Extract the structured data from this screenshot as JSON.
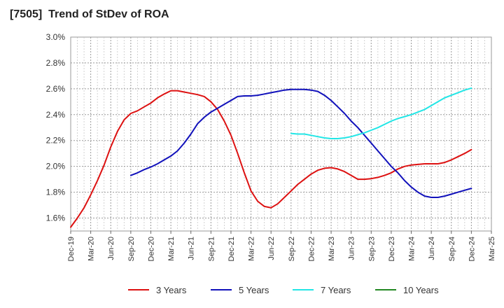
{
  "title": "[7505]  Trend of StDev of ROA",
  "chart_data": {
    "type": "line",
    "title": "[7505]  Trend of StDev of ROA",
    "xlabel": "",
    "ylabel": "",
    "ylim": [
      1.5,
      3.0
    ],
    "y_ticks": [
      "3.0%",
      "2.8%",
      "2.6%",
      "2.4%",
      "2.2%",
      "2.0%",
      "1.8%",
      "1.6%"
    ],
    "y_tick_values": [
      3.0,
      2.8,
      2.6,
      2.4,
      2.2,
      2.0,
      1.8,
      1.6
    ],
    "x_ticks": [
      "Dec-19",
      "Mar-20",
      "Jun-20",
      "Sep-20",
      "Dec-20",
      "Mar-21",
      "Jun-21",
      "Sep-21",
      "Dec-21",
      "Mar-22",
      "Jun-22",
      "Sep-22",
      "Dec-22",
      "Mar-23",
      "Jun-23",
      "Sep-23",
      "Dec-23",
      "Mar-24",
      "Jun-24",
      "Sep-24",
      "Dec-24",
      "Mar-25"
    ],
    "grid": true,
    "legend_position": "bottom",
    "series": [
      {
        "name": "3 Years",
        "color": "#dd1111",
        "points": [
          [
            "Dec-19",
            1.53
          ],
          [
            "Jan-20",
            1.6
          ],
          [
            "Feb-20",
            1.68
          ],
          [
            "Mar-20",
            1.78
          ],
          [
            "Apr-20",
            1.89
          ],
          [
            "May-20",
            2.01
          ],
          [
            "Jun-20",
            2.15
          ],
          [
            "Jul-20",
            2.27
          ],
          [
            "Aug-20",
            2.36
          ],
          [
            "Sep-20",
            2.41
          ],
          [
            "Oct-20",
            2.43
          ],
          [
            "Nov-20",
            2.46
          ],
          [
            "Dec-20",
            2.49
          ],
          [
            "Jan-21",
            2.53
          ],
          [
            "Feb-21",
            2.56
          ],
          [
            "Mar-21",
            2.585
          ],
          [
            "Apr-21",
            2.585
          ],
          [
            "May-21",
            2.575
          ],
          [
            "Jun-21",
            2.565
          ],
          [
            "Jul-21",
            2.555
          ],
          [
            "Aug-21",
            2.54
          ],
          [
            "Sep-21",
            2.5
          ],
          [
            "Oct-21",
            2.44
          ],
          [
            "Nov-21",
            2.35
          ],
          [
            "Dec-21",
            2.24
          ],
          [
            "Jan-22",
            2.1
          ],
          [
            "Feb-22",
            1.95
          ],
          [
            "Mar-22",
            1.81
          ],
          [
            "Apr-22",
            1.73
          ],
          [
            "May-22",
            1.69
          ],
          [
            "Jun-22",
            1.68
          ],
          [
            "Jul-22",
            1.71
          ],
          [
            "Aug-22",
            1.76
          ],
          [
            "Sep-22",
            1.81
          ],
          [
            "Oct-22",
            1.86
          ],
          [
            "Nov-22",
            1.9
          ],
          [
            "Dec-22",
            1.94
          ],
          [
            "Jan-23",
            1.97
          ],
          [
            "Feb-23",
            1.985
          ],
          [
            "Mar-23",
            1.99
          ],
          [
            "Apr-23",
            1.98
          ],
          [
            "May-23",
            1.96
          ],
          [
            "Jun-23",
            1.93
          ],
          [
            "Jul-23",
            1.9
          ],
          [
            "Aug-23",
            1.9
          ],
          [
            "Sep-23",
            1.905
          ],
          [
            "Oct-23",
            1.915
          ],
          [
            "Nov-23",
            1.93
          ],
          [
            "Dec-23",
            1.95
          ],
          [
            "Jan-24",
            1.98
          ],
          [
            "Feb-24",
            2.0
          ],
          [
            "Mar-24",
            2.01
          ],
          [
            "Apr-24",
            2.015
          ],
          [
            "May-24",
            2.02
          ],
          [
            "Jun-24",
            2.02
          ],
          [
            "Jul-24",
            2.02
          ],
          [
            "Aug-24",
            2.03
          ],
          [
            "Sep-24",
            2.05
          ],
          [
            "Oct-24",
            2.075
          ],
          [
            "Nov-24",
            2.1
          ],
          [
            "Dec-24",
            2.13
          ]
        ]
      },
      {
        "name": "5 Years",
        "color": "#1111bb",
        "points": [
          [
            "Sep-20",
            1.93
          ],
          [
            "Oct-20",
            1.95
          ],
          [
            "Nov-20",
            1.975
          ],
          [
            "Dec-20",
            1.995
          ],
          [
            "Jan-21",
            2.02
          ],
          [
            "Feb-21",
            2.05
          ],
          [
            "Mar-21",
            2.08
          ],
          [
            "Apr-21",
            2.12
          ],
          [
            "May-21",
            2.18
          ],
          [
            "Jun-21",
            2.25
          ],
          [
            "Jul-21",
            2.33
          ],
          [
            "Aug-21",
            2.38
          ],
          [
            "Sep-21",
            2.42
          ],
          [
            "Oct-21",
            2.45
          ],
          [
            "Nov-21",
            2.48
          ],
          [
            "Dec-21",
            2.51
          ],
          [
            "Jan-22",
            2.54
          ],
          [
            "Feb-22",
            2.545
          ],
          [
            "Mar-22",
            2.545
          ],
          [
            "Apr-22",
            2.55
          ],
          [
            "May-22",
            2.56
          ],
          [
            "Jun-22",
            2.57
          ],
          [
            "Jul-22",
            2.58
          ],
          [
            "Aug-22",
            2.59
          ],
          [
            "Sep-22",
            2.595
          ],
          [
            "Oct-22",
            2.595
          ],
          [
            "Nov-22",
            2.595
          ],
          [
            "Dec-22",
            2.59
          ],
          [
            "Jan-23",
            2.58
          ],
          [
            "Feb-23",
            2.55
          ],
          [
            "Mar-23",
            2.51
          ],
          [
            "Apr-23",
            2.46
          ],
          [
            "May-23",
            2.41
          ],
          [
            "Jun-23",
            2.35
          ],
          [
            "Jul-23",
            2.3
          ],
          [
            "Aug-23",
            2.24
          ],
          [
            "Sep-23",
            2.18
          ],
          [
            "Oct-23",
            2.12
          ],
          [
            "Nov-23",
            2.06
          ],
          [
            "Dec-23",
            2.0
          ],
          [
            "Jan-24",
            1.95
          ],
          [
            "Feb-24",
            1.89
          ],
          [
            "Mar-24",
            1.84
          ],
          [
            "Apr-24",
            1.8
          ],
          [
            "May-24",
            1.77
          ],
          [
            "Jun-24",
            1.76
          ],
          [
            "Jul-24",
            1.76
          ],
          [
            "Aug-24",
            1.77
          ],
          [
            "Sep-24",
            1.785
          ],
          [
            "Oct-24",
            1.8
          ],
          [
            "Nov-24",
            1.815
          ],
          [
            "Dec-24",
            1.83
          ]
        ]
      },
      {
        "name": "7 Years",
        "color": "#22e6e6",
        "points": [
          [
            "Sep-22",
            2.255
          ],
          [
            "Oct-22",
            2.25
          ],
          [
            "Nov-22",
            2.25
          ],
          [
            "Dec-22",
            2.24
          ],
          [
            "Jan-23",
            2.23
          ],
          [
            "Feb-23",
            2.22
          ],
          [
            "Mar-23",
            2.215
          ],
          [
            "Apr-23",
            2.215
          ],
          [
            "May-23",
            2.22
          ],
          [
            "Jun-23",
            2.23
          ],
          [
            "Jul-23",
            2.245
          ],
          [
            "Aug-23",
            2.26
          ],
          [
            "Sep-23",
            2.28
          ],
          [
            "Oct-23",
            2.3
          ],
          [
            "Nov-23",
            2.325
          ],
          [
            "Dec-23",
            2.35
          ],
          [
            "Jan-24",
            2.37
          ],
          [
            "Feb-24",
            2.385
          ],
          [
            "Mar-24",
            2.4
          ],
          [
            "Apr-24",
            2.42
          ],
          [
            "May-24",
            2.44
          ],
          [
            "Jun-24",
            2.47
          ],
          [
            "Jul-24",
            2.5
          ],
          [
            "Aug-24",
            2.53
          ],
          [
            "Sep-24",
            2.55
          ],
          [
            "Oct-24",
            2.57
          ],
          [
            "Nov-24",
            2.59
          ],
          [
            "Dec-24",
            2.605
          ]
        ]
      },
      {
        "name": "10 Years",
        "color": "#228822",
        "points": []
      }
    ]
  }
}
